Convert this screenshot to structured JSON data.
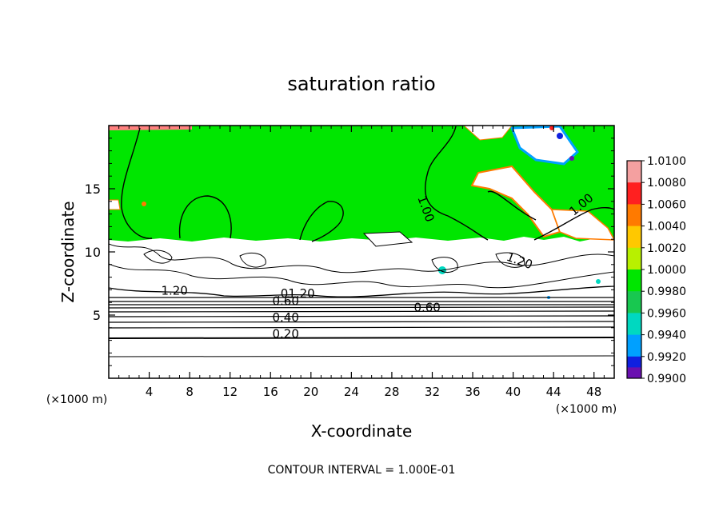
{
  "chart_data": {
    "type": "heatmap",
    "title": "saturation ratio",
    "xlabel": "X-coordinate",
    "ylabel": "Z-coordinate",
    "x_unit_left": "(×1000 m)",
    "x_unit_right": "(×1000 m)",
    "footer": "CONTOUR INTERVAL = 1.000E-01",
    "xlim": [
      0,
      50
    ],
    "ylim": [
      0,
      20
    ],
    "x_ticks": [
      4,
      8,
      12,
      16,
      20,
      24,
      28,
      32,
      36,
      40,
      44,
      48
    ],
    "y_ticks": [
      5,
      10,
      15
    ],
    "contour_interval": 0.1,
    "contour_labels": [
      {
        "text": "0.20",
        "x": 17.5,
        "z": 3.2
      },
      {
        "text": "0.40",
        "x": 17.5,
        "z": 4.5
      },
      {
        "text": "0.60",
        "x": 17.5,
        "z": 5.8
      },
      {
        "text": "0.60",
        "x": 31.5,
        "z": 5.3
      },
      {
        "text": "1.20",
        "x": 6.5,
        "z": 6.6
      },
      {
        "text": ".01.20",
        "x": 18.5,
        "z": 6.4
      },
      {
        "text": "1.00",
        "x": 31.0,
        "z": 13.3
      },
      {
        "text": "1.00",
        "x": 47.0,
        "z": 13.5
      },
      {
        "text": "1.20",
        "x": 40.5,
        "z": 9.0
      }
    ],
    "colorbar": {
      "values": [
        "1.0100",
        "1.0080",
        "1.0060",
        "1.0040",
        "1.0020",
        "1.0000",
        "0.9980",
        "0.9960",
        "0.9940",
        "0.9920",
        "0.9900"
      ],
      "colors": [
        "#f4a0a0",
        "#ff2020",
        "#ff7a00",
        "#ffc800",
        "#b8f000",
        "#00e600",
        "#18c850",
        "#00d8c0",
        "#00a0ff",
        "#1020e0",
        "#6a10b0"
      ]
    },
    "colors": {
      "saturated_fill": "#00e600",
      "subsaturated_fill": "#ffffff",
      "contour": "#000000",
      "frame": "#000000"
    }
  }
}
